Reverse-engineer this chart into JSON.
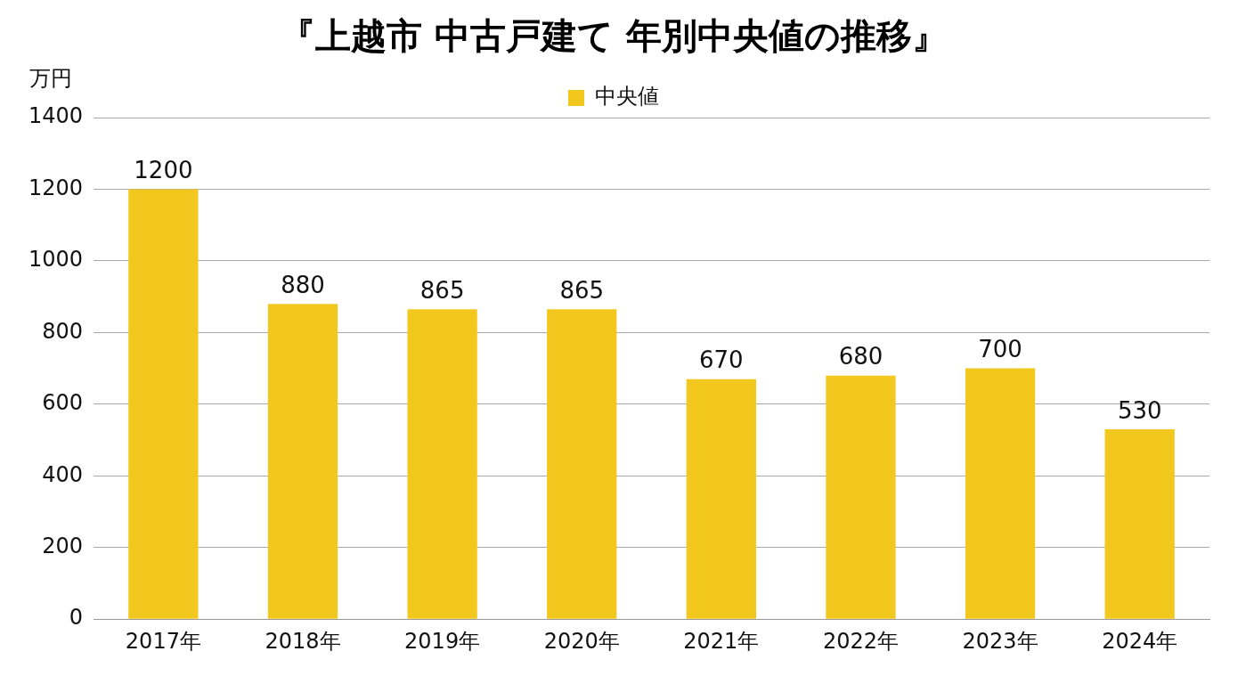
{
  "chart_data": {
    "type": "bar",
    "title": "『上越市 中古戸建て 年別中央値の推移』",
    "ylabel": "万円",
    "categories": [
      "2017年",
      "2018年",
      "2019年",
      "2020年",
      "2021年",
      "2022年",
      "2023年",
      "2024年"
    ],
    "series": [
      {
        "name": "中央値",
        "color": "#f2c81f",
        "values": [
          1200,
          880,
          865,
          865,
          670,
          680,
          700,
          530
        ]
      }
    ],
    "ylim": [
      0,
      1400
    ],
    "yticks": [
      0,
      200,
      400,
      600,
      800,
      1000,
      1200,
      1400
    ],
    "grid": "y",
    "legend": "top",
    "data_labels": true
  }
}
